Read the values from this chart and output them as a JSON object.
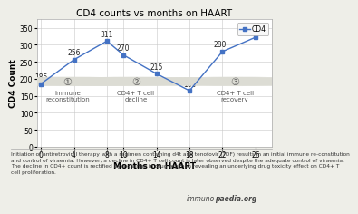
{
  "title": "CD4 counts vs months on HAART",
  "xlabel": "Months on HAART",
  "ylabel": "CD4 Count",
  "x": [
    0,
    4,
    8,
    10,
    14,
    18,
    22,
    26
  ],
  "y": [
    185,
    256,
    311,
    270,
    215,
    165,
    280,
    322
  ],
  "line_color": "#4472C4",
  "marker_color": "#4472C4",
  "xlim": [
    -0.5,
    28
  ],
  "ylim": [
    0,
    375
  ],
  "yticks": [
    0,
    50,
    100,
    150,
    200,
    250,
    300,
    350
  ],
  "xticks": [
    0,
    4,
    8,
    10,
    14,
    18,
    22,
    26
  ],
  "legend_label": "CD4",
  "phase1_x": 3.2,
  "phase1_y": 170,
  "phase1_label": "Immune\nreconstitution",
  "phase2_x": 11.5,
  "phase2_y": 170,
  "phase2_label": "CD4+ T cell\ndecline",
  "phase3_x": 23.5,
  "phase3_y": 170,
  "phase3_label": "CD4+ T cell\nrecovery",
  "footnote1": "Initiation of antiretroviral therapy with a regimen containing d4t and tenofovir (TDF) results in an initial immune re-constitution",
  "footnote2": "and control of viraemia. However, a decline in CD4+ T cell count is later observed despite the adequate control of viraemia.",
  "footnote3": "The decline in CD4+ count is rectified by a change in drug regimen revealing an underlying drug toxicity effect on CD4+ T",
  "footnote4": "cell proliferation.",
  "background_color": "#eeeee8",
  "plot_bg_color": "#ffffff",
  "grid_color": "#c8c8c8",
  "title_fontsize": 7.5,
  "axis_label_fontsize": 6.5,
  "tick_fontsize": 5.5,
  "data_label_fontsize": 5.5,
  "phase_num_fontsize": 8,
  "phase_label_fontsize": 5.0,
  "footnote_fontsize": 4.2,
  "legend_fontsize": 5.5,
  "circle_color": "#dcdcd4",
  "circle_edge_color": "#999999",
  "phase_text_color": "#555555"
}
